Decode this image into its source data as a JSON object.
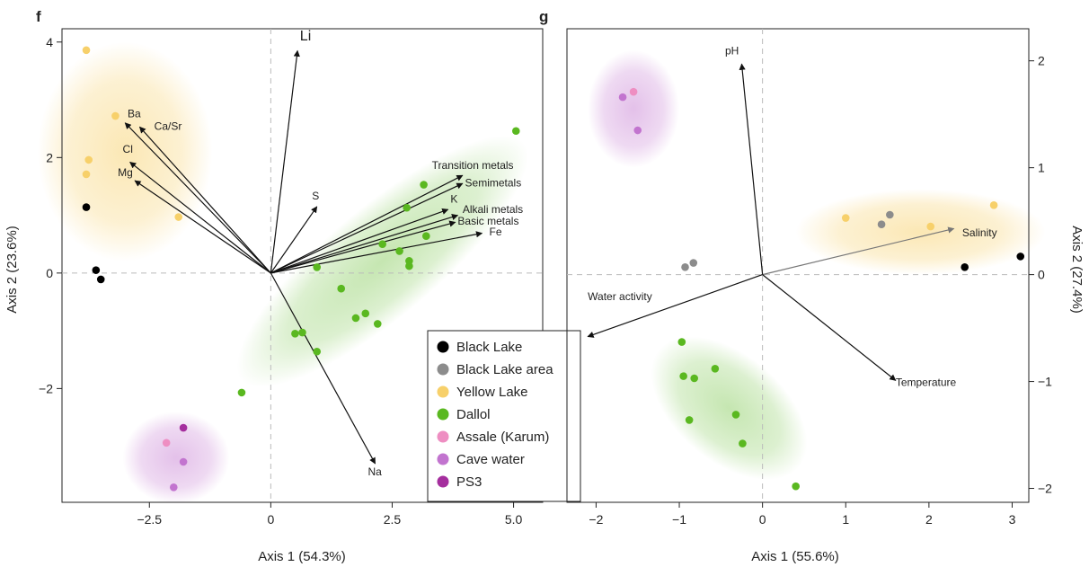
{
  "colors": {
    "Black Lake": "#000000",
    "Black Lake area": "#8c8c8c",
    "Yellow Lake": "#f7d06a",
    "Dallol": "#5ab820",
    "Assale (Karum)": "#ee8ec2",
    "Cave water": "#c274cf",
    "PS3": "#a52e9e"
  },
  "legend": {
    "entries": [
      {
        "label": "Black Lake",
        "color": "#000000"
      },
      {
        "label": "Black Lake area",
        "color": "#8c8c8c"
      },
      {
        "label": "Yellow Lake",
        "color": "#f7d06a"
      },
      {
        "label": "Dallol",
        "color": "#5ab820"
      },
      {
        "label": "Assale (Karum)",
        "color": "#ee8ec2"
      },
      {
        "label": "Cave water",
        "color": "#c274cf"
      },
      {
        "label": "PS3",
        "color": "#a52e9e"
      }
    ]
  },
  "chart_data": [
    {
      "panel": "f",
      "type": "scatter",
      "xlabel": "Axis 1 (54.3%)",
      "ylabel": "Axis 2 (23.6%)",
      "xlim": [
        -4.3,
        5.6
      ],
      "ylim": [
        -3.97,
        4.23
      ],
      "xticks": [
        -2.5,
        0,
        2.5,
        5.0
      ],
      "xtick_labels": [
        "−2.5",
        "0",
        "2.5",
        "5.0"
      ],
      "yticks": [
        -2,
        0,
        2,
        4
      ],
      "ytick_labels": [
        "−2",
        "0",
        "2",
        "4"
      ],
      "ytick_side": "left",
      "points": [
        {
          "group": "Yellow Lake",
          "x": -3.8,
          "y": 3.86
        },
        {
          "group": "Yellow Lake",
          "x": -3.2,
          "y": 2.72
        },
        {
          "group": "Yellow Lake",
          "x": -3.75,
          "y": 1.96
        },
        {
          "group": "Yellow Lake",
          "x": -3.8,
          "y": 1.71
        },
        {
          "group": "Yellow Lake",
          "x": -1.9,
          "y": 0.97
        },
        {
          "group": "Black Lake",
          "x": -3.8,
          "y": 1.14
        },
        {
          "group": "Black Lake",
          "x": -3.6,
          "y": 0.05
        },
        {
          "group": "Black Lake",
          "x": -3.5,
          "y": -0.11
        },
        {
          "group": "Dallol",
          "x": 5.05,
          "y": 2.46
        },
        {
          "group": "Dallol",
          "x": 3.15,
          "y": 1.53
        },
        {
          "group": "Dallol",
          "x": 2.8,
          "y": 1.13
        },
        {
          "group": "Dallol",
          "x": 3.2,
          "y": 0.64
        },
        {
          "group": "Dallol",
          "x": 2.3,
          "y": 0.5
        },
        {
          "group": "Dallol",
          "x": 2.65,
          "y": 0.38
        },
        {
          "group": "Dallol",
          "x": 2.85,
          "y": 0.21
        },
        {
          "group": "Dallol",
          "x": 2.85,
          "y": 0.12
        },
        {
          "group": "Dallol",
          "x": 0.95,
          "y": 0.1
        },
        {
          "group": "Dallol",
          "x": 1.45,
          "y": -0.27
        },
        {
          "group": "Dallol",
          "x": 1.95,
          "y": -0.7
        },
        {
          "group": "Dallol",
          "x": 1.75,
          "y": -0.78
        },
        {
          "group": "Dallol",
          "x": 2.2,
          "y": -0.88
        },
        {
          "group": "Dallol",
          "x": 0.5,
          "y": -1.05
        },
        {
          "group": "Dallol",
          "x": 0.65,
          "y": -1.03
        },
        {
          "group": "Dallol",
          "x": 0.95,
          "y": -1.36
        },
        {
          "group": "Dallol",
          "x": -0.6,
          "y": -2.07
        },
        {
          "group": "PS3",
          "x": -1.8,
          "y": -2.68
        },
        {
          "group": "Assale (Karum)",
          "x": -2.15,
          "y": -2.94
        },
        {
          "group": "Cave water",
          "x": -1.8,
          "y": -3.27
        },
        {
          "group": "Cave water",
          "x": -2.0,
          "y": -3.71
        }
      ],
      "arrows": [
        {
          "label": "Li",
          "x": 0.55,
          "y": 3.85,
          "label_x": 0.6,
          "label_y": 4.03,
          "anchor": "start",
          "big": true
        },
        {
          "label": "Ba",
          "x": -3.0,
          "y": 2.6,
          "label_x": -2.95,
          "label_y": 2.7,
          "anchor": "start"
        },
        {
          "label": "Ca/Sr",
          "x": -2.7,
          "y": 2.53,
          "label_x": -2.4,
          "label_y": 2.48,
          "anchor": "start"
        },
        {
          "label": "Cl",
          "x": -2.9,
          "y": 1.92,
          "label_x": -3.05,
          "label_y": 2.08,
          "anchor": "start"
        },
        {
          "label": "Mg",
          "x": -2.8,
          "y": 1.6,
          "label_x": -3.15,
          "label_y": 1.68,
          "anchor": "start"
        },
        {
          "label": "S",
          "x": 0.95,
          "y": 1.15,
          "label_x": 0.85,
          "label_y": 1.27,
          "anchor": "start"
        },
        {
          "label": "Transition metals",
          "x": 3.95,
          "y": 1.69,
          "label_x": 5.0,
          "label_y": 1.8,
          "anchor": "end"
        },
        {
          "label": "Semimetals",
          "x": 3.95,
          "y": 1.55,
          "label_x": 4.0,
          "label_y": 1.5,
          "anchor": "start"
        },
        {
          "label": "K",
          "x": 3.65,
          "y": 1.1,
          "label_x": 3.7,
          "label_y": 1.22,
          "anchor": "start"
        },
        {
          "label": "Alkali metals",
          "x": 3.85,
          "y": 1.0,
          "label_x": 3.95,
          "label_y": 1.04,
          "anchor": "start"
        },
        {
          "label": "Basic metals",
          "x": 3.8,
          "y": 0.88,
          "label_x": 3.85,
          "label_y": 0.84,
          "anchor": "start"
        },
        {
          "label": "Fe",
          "x": 4.35,
          "y": 0.69,
          "label_x": 4.5,
          "label_y": 0.65,
          "anchor": "start"
        },
        {
          "label": "Na",
          "x": 2.15,
          "y": -3.3,
          "label_x": 2.0,
          "label_y": -3.5,
          "anchor": "start"
        }
      ]
    },
    {
      "panel": "g",
      "type": "scatter",
      "xlabel": "Axis 1 (55.6%)",
      "ylabel": "Axis 2 (27.4%)",
      "xlim": [
        -2.35,
        3.2
      ],
      "ylim": [
        -2.13,
        2.3
      ],
      "xticks": [
        -2,
        -1,
        0,
        1,
        2,
        3
      ],
      "xtick_labels": [
        "−2",
        "−1",
        "0",
        "1",
        "2",
        "3"
      ],
      "yticks": [
        -2,
        -1,
        0,
        1,
        2
      ],
      "ytick_labels": [
        "−2",
        "−1",
        "0",
        "1",
        "2"
      ],
      "ytick_side": "right",
      "points": [
        {
          "group": "Cave water",
          "x": -1.68,
          "y": 1.66
        },
        {
          "group": "Assale (Karum)",
          "x": -1.55,
          "y": 1.71
        },
        {
          "group": "Cave water",
          "x": -1.5,
          "y": 1.35
        },
        {
          "group": "Yellow Lake",
          "x": 1.0,
          "y": 0.53
        },
        {
          "group": "Black Lake area",
          "x": 1.43,
          "y": 0.47
        },
        {
          "group": "Black Lake area",
          "x": 1.53,
          "y": 0.56
        },
        {
          "group": "Yellow Lake",
          "x": 2.02,
          "y": 0.45
        },
        {
          "group": "Yellow Lake",
          "x": 2.78,
          "y": 0.65
        },
        {
          "group": "Black Lake",
          "x": 2.43,
          "y": 0.07
        },
        {
          "group": "Black Lake",
          "x": 3.1,
          "y": 0.17
        },
        {
          "group": "Black Lake area",
          "x": -0.93,
          "y": 0.07
        },
        {
          "group": "Black Lake area",
          "x": -0.83,
          "y": 0.11
        },
        {
          "group": "Dallol",
          "x": -0.97,
          "y": -0.63
        },
        {
          "group": "Dallol",
          "x": -0.57,
          "y": -0.88
        },
        {
          "group": "Dallol",
          "x": -0.95,
          "y": -0.95
        },
        {
          "group": "Dallol",
          "x": -0.82,
          "y": -0.97
        },
        {
          "group": "Dallol",
          "x": -0.32,
          "y": -1.31
        },
        {
          "group": "Dallol",
          "x": -0.88,
          "y": -1.36
        },
        {
          "group": "Dallol",
          "x": -0.24,
          "y": -1.58
        },
        {
          "group": "Dallol",
          "x": 0.4,
          "y": -1.98
        }
      ],
      "arrows": [
        {
          "label": "pH",
          "x": -0.25,
          "y": 1.97,
          "label_x": -0.45,
          "label_y": 2.06,
          "anchor": "start"
        },
        {
          "label": "Salinity",
          "x": 2.3,
          "y": 0.43,
          "label_x": 2.4,
          "label_y": 0.36,
          "anchor": "start",
          "gray": true
        },
        {
          "label": "Water activity",
          "x": -2.1,
          "y": -0.58,
          "label_x": -2.1,
          "label_y": -0.24,
          "anchor": "start"
        },
        {
          "label": "Temperature",
          "x": 1.6,
          "y": -0.99,
          "label_x": 1.6,
          "label_y": -1.04,
          "anchor": "start"
        }
      ]
    }
  ],
  "halos": [
    {
      "panel": 0,
      "color": "#f7d06a",
      "cx": -3.0,
      "cy": 2.1,
      "rx": 1.8,
      "ry": 1.9,
      "rot": 0,
      "op": 0.5
    },
    {
      "panel": 0,
      "color": "#5ab820",
      "cx": 2.3,
      "cy": 0.2,
      "rx": 3.8,
      "ry": 0.95,
      "rot": -40,
      "op": 0.35
    },
    {
      "panel": 0,
      "color": "#c274cf",
      "cx": -1.95,
      "cy": -3.2,
      "rx": 1.1,
      "ry": 0.8,
      "rot": 0,
      "op": 0.45
    },
    {
      "panel": 1,
      "color": "#c274cf",
      "cx": -1.55,
      "cy": 1.55,
      "rx": 0.55,
      "ry": 0.55,
      "rot": 0,
      "op": 0.45
    },
    {
      "panel": 1,
      "color": "#f7d06a",
      "cx": 1.9,
      "cy": 0.4,
      "rx": 1.5,
      "ry": 0.4,
      "rot": 0,
      "op": 0.5
    },
    {
      "panel": 1,
      "color": "#5ab820",
      "cx": -0.4,
      "cy": -1.25,
      "rx": 1.1,
      "ry": 0.5,
      "rot": 40,
      "op": 0.35
    }
  ]
}
